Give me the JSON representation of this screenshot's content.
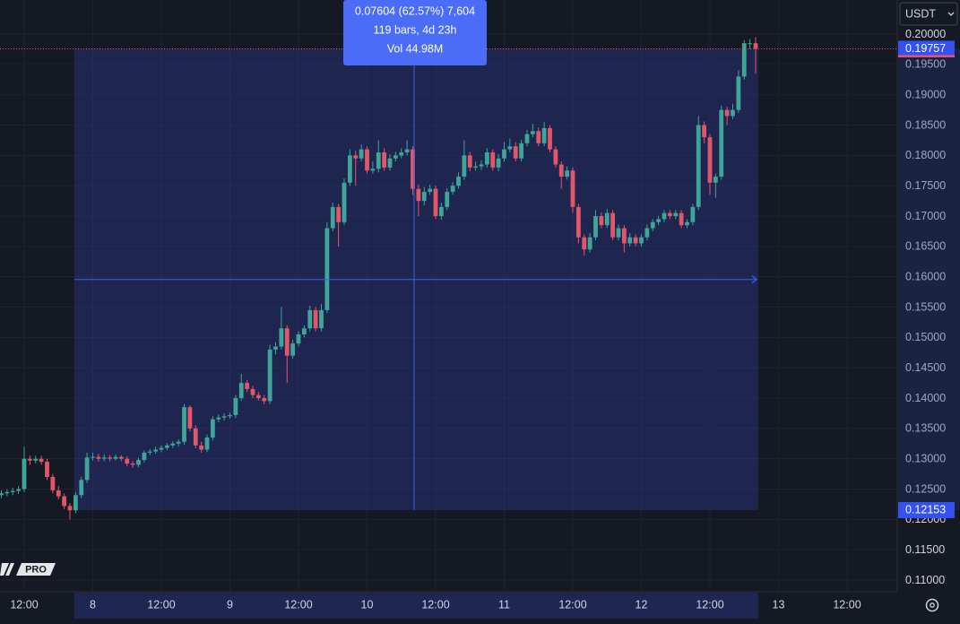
{
  "chart_data": {
    "type": "candlestick",
    "currency": "USDT",
    "logo": "PRO",
    "tooltip": [
      "0.07604 (62.57%) 7,604",
      "119 bars, 4d 23h",
      "Vol 44.98M"
    ],
    "last_price": 0.19757,
    "range_low": 0.12153,
    "up_color": "#3fa49a",
    "down_color": "#e2566a",
    "grid": true,
    "ylim": [
      0.10808,
      0.20562
    ],
    "yticks": [
      {
        "value": 0.2,
        "label": "0.20000"
      },
      {
        "value": 0.195,
        "label": "0.19500"
      },
      {
        "value": 0.19,
        "label": "0.19000"
      },
      {
        "value": 0.185,
        "label": "0.18500"
      },
      {
        "value": 0.18,
        "label": "0.18000"
      },
      {
        "value": 0.175,
        "label": "0.17500"
      },
      {
        "value": 0.17,
        "label": "0.17000"
      },
      {
        "value": 0.165,
        "label": "0.16500"
      },
      {
        "value": 0.16,
        "label": "0.16000"
      },
      {
        "value": 0.155,
        "label": "0.15500"
      },
      {
        "value": 0.15,
        "label": "0.15000"
      },
      {
        "value": 0.145,
        "label": "0.14500"
      },
      {
        "value": 0.14,
        "label": "0.14000"
      },
      {
        "value": 0.135,
        "label": "0.13500"
      },
      {
        "value": 0.13,
        "label": "0.13000"
      },
      {
        "value": 0.125,
        "label": "0.12500"
      },
      {
        "value": 0.12,
        "label": "0.12000"
      },
      {
        "value": 0.115,
        "label": "0.11500"
      },
      {
        "value": 0.11,
        "label": "0.11000"
      }
    ],
    "time_labels": [
      "12:00",
      "8",
      "12:00",
      "9",
      "12:00",
      "10",
      "12:00",
      "11",
      "12:00",
      "12",
      "12:00",
      "13",
      "12:00"
    ],
    "open": [
      0.124,
      0.1243,
      0.1245,
      0.1247,
      0.125,
      0.13,
      0.1297,
      0.13,
      0.1295,
      0.127,
      0.1248,
      0.1238,
      0.1222,
      0.1215,
      0.124,
      0.1265,
      0.1302,
      0.1303,
      0.13,
      0.1302,
      0.13,
      0.1303,
      0.13,
      0.1292,
      0.129,
      0.1298,
      0.131,
      0.1312,
      0.1315,
      0.1318,
      0.1322,
      0.1325,
      0.1328,
      0.1385,
      0.135,
      0.1322,
      0.1315,
      0.1335,
      0.1365,
      0.1368,
      0.137,
      0.1372,
      0.14,
      0.1425,
      0.1415,
      0.1405,
      0.14,
      0.1395,
      0.148,
      0.1485,
      0.1515,
      0.147,
      0.149,
      0.1505,
      0.1515,
      0.1545,
      0.1515,
      0.1545,
      0.168,
      0.1715,
      0.169,
      0.1755,
      0.18,
      0.1795,
      0.181,
      0.1775,
      0.1778,
      0.1805,
      0.178,
      0.1795,
      0.18,
      0.1805,
      0.181,
      0.1745,
      0.1725,
      0.174,
      0.1745,
      0.17,
      0.1715,
      0.174,
      0.175,
      0.1765,
      0.18,
      0.178,
      0.1782,
      0.1785,
      0.1805,
      0.178,
      0.1795,
      0.181,
      0.1815,
      0.1795,
      0.182,
      0.1835,
      0.184,
      0.182,
      0.1845,
      0.181,
      0.1785,
      0.1765,
      0.1775,
      0.1715,
      0.1665,
      0.1645,
      0.1665,
      0.17,
      0.1685,
      0.1705,
      0.1665,
      0.168,
      0.1655,
      0.1665,
      0.1655,
      0.1665,
      0.168,
      0.169,
      0.1695,
      0.1705,
      0.17,
      0.1705,
      0.1685,
      0.169,
      0.1715,
      0.185,
      0.183,
      0.1755,
      0.1765,
      0.1875,
      0.1865,
      0.1875,
      0.193,
      0.1985,
      0.1985
    ],
    "high": [
      0.1248,
      0.125,
      0.1252,
      0.1255,
      0.132,
      0.1305,
      0.1305,
      0.1305,
      0.13,
      0.1275,
      0.1255,
      0.1243,
      0.1227,
      0.1245,
      0.127,
      0.131,
      0.131,
      0.1308,
      0.1307,
      0.1306,
      0.1307,
      0.1306,
      0.1304,
      0.1296,
      0.1302,
      0.1314,
      0.1316,
      0.132,
      0.1322,
      0.1326,
      0.1329,
      0.1332,
      0.139,
      0.1388,
      0.1355,
      0.1328,
      0.134,
      0.137,
      0.1373,
      0.1375,
      0.1376,
      0.1405,
      0.144,
      0.143,
      0.142,
      0.141,
      0.1405,
      0.1488,
      0.1492,
      0.155,
      0.152,
      0.1496,
      0.151,
      0.152,
      0.1552,
      0.155,
      0.1555,
      0.169,
      0.1722,
      0.172,
      0.1762,
      0.181,
      0.1808,
      0.1818,
      0.1815,
      0.179,
      0.1825,
      0.1812,
      0.1802,
      0.1806,
      0.1812,
      0.1825,
      0.1815,
      0.1752,
      0.1748,
      0.1752,
      0.175,
      0.1722,
      0.1746,
      0.1756,
      0.1772,
      0.1825,
      0.1806,
      0.179,
      0.1792,
      0.1812,
      0.181,
      0.1802,
      0.1822,
      0.1828,
      0.1822,
      0.1826,
      0.1842,
      0.1852,
      0.1846,
      0.1855,
      0.185,
      0.1815,
      0.179,
      0.1782,
      0.178,
      0.172,
      0.167,
      0.1672,
      0.171,
      0.1706,
      0.1712,
      0.171,
      0.1686,
      0.1685,
      0.1672,
      0.167,
      0.167,
      0.1686,
      0.1695,
      0.17,
      0.171,
      0.171,
      0.171,
      0.171,
      0.1695,
      0.172,
      0.1865,
      0.1856,
      0.1835,
      0.177,
      0.1882,
      0.188,
      0.1885,
      0.194,
      0.199,
      0.1992,
      0.1995
    ],
    "low": [
      0.1235,
      0.1238,
      0.124,
      0.1242,
      0.1245,
      0.129,
      0.1292,
      0.129,
      0.1265,
      0.1243,
      0.1233,
      0.1217,
      0.12,
      0.121,
      0.1235,
      0.126,
      0.1297,
      0.1295,
      0.1296,
      0.1296,
      0.1297,
      0.1296,
      0.1288,
      0.1285,
      0.1286,
      0.1294,
      0.1306,
      0.1308,
      0.1311,
      0.1314,
      0.1318,
      0.132,
      0.1323,
      0.1345,
      0.1317,
      0.131,
      0.1311,
      0.133,
      0.136,
      0.1363,
      0.1366,
      0.1367,
      0.1395,
      0.141,
      0.14,
      0.1396,
      0.139,
      0.139,
      0.1472,
      0.148,
      0.1425,
      0.1465,
      0.1485,
      0.15,
      0.151,
      0.151,
      0.151,
      0.154,
      0.1675,
      0.165,
      0.1685,
      0.175,
      0.175,
      0.179,
      0.177,
      0.177,
      0.1772,
      0.1775,
      0.1775,
      0.179,
      0.1795,
      0.18,
      0.1735,
      0.17,
      0.1718,
      0.1735,
      0.1695,
      0.1694,
      0.171,
      0.1735,
      0.1745,
      0.176,
      0.1774,
      0.1775,
      0.1776,
      0.178,
      0.1775,
      0.1774,
      0.179,
      0.1805,
      0.179,
      0.179,
      0.1815,
      0.183,
      0.1815,
      0.1815,
      0.1805,
      0.178,
      0.1745,
      0.176,
      0.1705,
      0.1655,
      0.1635,
      0.164,
      0.166,
      0.168,
      0.168,
      0.166,
      0.166,
      0.164,
      0.165,
      0.165,
      0.165,
      0.166,
      0.1675,
      0.1685,
      0.169,
      0.1695,
      0.1695,
      0.168,
      0.168,
      0.1685,
      0.171,
      0.182,
      0.1735,
      0.173,
      0.176,
      0.185,
      0.186,
      0.187,
      0.1925,
      0.1975,
      0.1935
    ],
    "close": [
      0.1243,
      0.1245,
      0.1247,
      0.125,
      0.13,
      0.1297,
      0.13,
      0.1295,
      0.127,
      0.1248,
      0.1238,
      0.1222,
      0.1215,
      0.124,
      0.1265,
      0.1302,
      0.1303,
      0.13,
      0.1302,
      0.13,
      0.1303,
      0.13,
      0.1292,
      0.129,
      0.1298,
      0.131,
      0.1312,
      0.1315,
      0.1318,
      0.1322,
      0.1325,
      0.1328,
      0.1385,
      0.135,
      0.1322,
      0.1315,
      0.1335,
      0.1365,
      0.1368,
      0.137,
      0.1372,
      0.14,
      0.1425,
      0.1415,
      0.1405,
      0.14,
      0.1395,
      0.148,
      0.1485,
      0.1515,
      0.147,
      0.149,
      0.1505,
      0.1515,
      0.1545,
      0.1515,
      0.1545,
      0.168,
      0.1715,
      0.169,
      0.1755,
      0.18,
      0.1795,
      0.181,
      0.1775,
      0.1778,
      0.1805,
      0.178,
      0.1795,
      0.18,
      0.1805,
      0.181,
      0.1745,
      0.1725,
      0.174,
      0.1745,
      0.17,
      0.1715,
      0.174,
      0.175,
      0.1765,
      0.18,
      0.178,
      0.1782,
      0.1785,
      0.1805,
      0.178,
      0.1795,
      0.181,
      0.1815,
      0.1795,
      0.182,
      0.1835,
      0.184,
      0.182,
      0.1845,
      0.181,
      0.1785,
      0.1765,
      0.1775,
      0.1715,
      0.1665,
      0.1645,
      0.1665,
      0.17,
      0.1685,
      0.1705,
      0.1665,
      0.168,
      0.1655,
      0.1665,
      0.1655,
      0.1665,
      0.168,
      0.169,
      0.1695,
      0.1705,
      0.17,
      0.1705,
      0.1685,
      0.169,
      0.1715,
      0.185,
      0.183,
      0.1755,
      0.1765,
      0.1875,
      0.1865,
      0.1875,
      0.193,
      0.1985,
      0.1985,
      0.19757
    ]
  }
}
